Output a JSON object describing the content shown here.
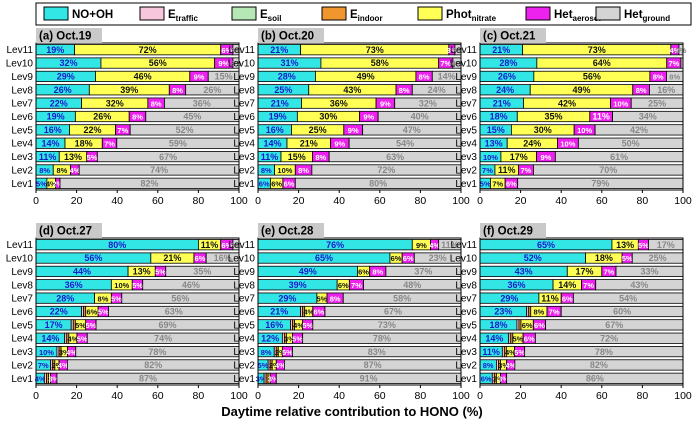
{
  "legend": [
    {
      "key": "NO+OH",
      "base": "NO+OH",
      "sub": "",
      "color": "#33e6e6"
    },
    {
      "key": "E_traffic",
      "base": "E",
      "sub": "traffic",
      "color": "#f7c6dd"
    },
    {
      "key": "E_soil",
      "base": "E",
      "sub": "soil",
      "color": "#b6e8b6"
    },
    {
      "key": "E_indoor",
      "base": "E",
      "sub": "indoor",
      "color": "#f0962e"
    },
    {
      "key": "Phot_nitrate",
      "base": "Phot",
      "sub": "nitrate",
      "color": "#ffff55"
    },
    {
      "key": "Het_aerosol",
      "base": "Het",
      "sub": "aerosol",
      "color": "#ee22ee"
    },
    {
      "key": "Het_ground",
      "base": "Het",
      "sub": "ground",
      "color": "#d4d4d4"
    }
  ],
  "xlabel": "Daytime relative contribution to HONO (%)",
  "chart_data": [
    {
      "type": "bar",
      "title": "(a) Oct.19",
      "xlim": [
        0,
        100
      ],
      "xticks": [
        0,
        20,
        40,
        60,
        80,
        100
      ],
      "categories": [
        "Lev11",
        "Lev10",
        "Lev9",
        "Lev8",
        "Lev7",
        "Lev6",
        "Lev5",
        "Lev4",
        "Lev3",
        "Lev2",
        "Lev1"
      ],
      "series": [
        {
          "name": "NO+OH",
          "values": [
            19,
            32,
            29,
            26,
            22,
            19,
            16,
            14,
            11,
            8,
            5
          ]
        },
        {
          "name": "E_traffic",
          "values": [
            0,
            0,
            0,
            0,
            0,
            0,
            0,
            0,
            0,
            0,
            0
          ]
        },
        {
          "name": "E_soil",
          "values": [
            0,
            0,
            0,
            0,
            0,
            0,
            0,
            0,
            0,
            0,
            0
          ]
        },
        {
          "name": "E_indoor",
          "values": [
            0,
            0,
            0,
            0,
            0,
            0,
            0,
            0,
            0,
            0,
            0
          ]
        },
        {
          "name": "Phot_nitrate",
          "values": [
            72,
            56,
            46,
            39,
            32,
            26,
            22,
            18,
            13,
            8,
            4
          ]
        },
        {
          "name": "Het_aerosol",
          "values": [
            6,
            9,
            9,
            8,
            8,
            8,
            7,
            7,
            5,
            4,
            2
          ]
        },
        {
          "name": "Het_ground",
          "values": [
            3,
            3,
            15,
            26,
            36,
            45,
            52,
            59,
            67,
            74,
            82
          ]
        }
      ]
    },
    {
      "type": "bar",
      "title": "(b) Oct.20",
      "xlim": [
        0,
        100
      ],
      "xticks": [
        0,
        20,
        40,
        60,
        80,
        100
      ],
      "categories": [
        "Lev11",
        "Lev10",
        "Lev9",
        "Lev8",
        "Lev7",
        "Lev6",
        "Lev5",
        "Lev4",
        "Lev3",
        "Lev2",
        "Lev1"
      ],
      "series": [
        {
          "name": "NO+OH",
          "values": [
            21,
            31,
            28,
            25,
            21,
            19,
            16,
            14,
            11,
            8,
            6
          ]
        },
        {
          "name": "E_traffic",
          "values": [
            0,
            0,
            0,
            0,
            0,
            0,
            0,
            0,
            0,
            0,
            0
          ]
        },
        {
          "name": "E_soil",
          "values": [
            0,
            0,
            0,
            0,
            0,
            0,
            0,
            0,
            0,
            0,
            0
          ]
        },
        {
          "name": "E_indoor",
          "values": [
            0,
            0,
            0,
            0,
            0,
            0,
            0,
            0,
            0,
            0,
            0
          ]
        },
        {
          "name": "Phot_nitrate",
          "values": [
            73,
            58,
            49,
            43,
            36,
            30,
            25,
            21,
            15,
            10,
            6
          ]
        },
        {
          "name": "Het_aerosol",
          "values": [
            3,
            7,
            8,
            8,
            9,
            9,
            9,
            9,
            8,
            8,
            6
          ]
        },
        {
          "name": "Het_ground",
          "values": [
            3,
            4,
            14,
            24,
            32,
            40,
            47,
            54,
            63,
            72,
            80
          ]
        }
      ]
    },
    {
      "type": "bar",
      "title": "(c) Oct.21",
      "xlim": [
        0,
        100
      ],
      "xticks": [
        0,
        20,
        40,
        60,
        80,
        100
      ],
      "categories": [
        "Lev11",
        "Lev10",
        "Lev9",
        "Lev8",
        "Lev7",
        "Lev6",
        "Lev5",
        "Lev4",
        "Lev3",
        "Lev2",
        "Lev1"
      ],
      "series": [
        {
          "name": "NO+OH",
          "values": [
            21,
            28,
            26,
            24,
            21,
            18,
            15,
            13,
            10,
            7,
            5
          ]
        },
        {
          "name": "E_traffic",
          "values": [
            0,
            0,
            0,
            0,
            0,
            0,
            0,
            0,
            0,
            0,
            0
          ]
        },
        {
          "name": "E_soil",
          "values": [
            0,
            0,
            0,
            0,
            0,
            0,
            0,
            0,
            0,
            0,
            0
          ]
        },
        {
          "name": "E_indoor",
          "values": [
            0,
            0,
            0,
            0,
            0,
            0,
            0,
            0,
            0,
            0,
            0
          ]
        },
        {
          "name": "Phot_nitrate",
          "values": [
            73,
            64,
            56,
            49,
            42,
            35,
            30,
            24,
            17,
            11,
            7
          ]
        },
        {
          "name": "Het_aerosol",
          "values": [
            4,
            7,
            8,
            8,
            10,
            11,
            10,
            10,
            9,
            7,
            6
          ]
        },
        {
          "name": "Het_ground",
          "values": [
            2,
            1,
            8,
            16,
            25,
            34,
            42,
            50,
            61,
            70,
            79
          ]
        }
      ]
    },
    {
      "type": "bar",
      "title": "(d) Oct.27",
      "xlim": [
        0,
        100
      ],
      "xticks": [
        0,
        20,
        40,
        60,
        80,
        100
      ],
      "categories": [
        "Lev11",
        "Lev10",
        "Lev9",
        "Lev8",
        "Lev7",
        "Lev6",
        "Lev5",
        "Lev4",
        "Lev3",
        "Lev2",
        "Lev1"
      ],
      "series": [
        {
          "name": "NO+OH",
          "values": [
            80,
            56,
            44,
            36,
            28,
            22,
            17,
            14,
            10,
            7,
            4
          ]
        },
        {
          "name": "E_traffic",
          "values": [
            0,
            0,
            0,
            0,
            0,
            1,
            1,
            1,
            1,
            1,
            1
          ]
        },
        {
          "name": "E_soil",
          "values": [
            0,
            0,
            0,
            0,
            0,
            0,
            0,
            0,
            0,
            0,
            0
          ]
        },
        {
          "name": "E_indoor",
          "values": [
            0,
            0,
            0,
            0,
            0,
            1,
            1,
            1,
            1,
            1,
            1
          ]
        },
        {
          "name": "Phot_nitrate",
          "values": [
            11,
            21,
            13,
            10,
            8,
            6,
            5,
            4,
            3,
            2,
            1
          ]
        },
        {
          "name": "Het_aerosol",
          "values": [
            6,
            6,
            5,
            5,
            5,
            5,
            5,
            5,
            4,
            4,
            3
          ]
        },
        {
          "name": "Het_ground",
          "values": [
            3,
            16,
            35,
            46,
            56,
            63,
            69,
            74,
            78,
            82,
            87
          ]
        }
      ]
    },
    {
      "type": "bar",
      "title": "(e) Oct.28",
      "xlim": [
        0,
        100
      ],
      "xticks": [
        0,
        20,
        40,
        60,
        80,
        100
      ],
      "categories": [
        "Lev11",
        "Lev10",
        "Lev9",
        "Lev8",
        "Lev7",
        "Lev6",
        "Lev5",
        "Lev4",
        "Lev3",
        "Lev2",
        "Lev1"
      ],
      "series": [
        {
          "name": "NO+OH",
          "values": [
            76,
            65,
            49,
            39,
            29,
            21,
            16,
            12,
            8,
            5,
            3
          ]
        },
        {
          "name": "E_traffic",
          "values": [
            0,
            0,
            0,
            0,
            0,
            1,
            1,
            1,
            1,
            1,
            1
          ]
        },
        {
          "name": "E_soil",
          "values": [
            0,
            0,
            0,
            0,
            0,
            0,
            0,
            0,
            0,
            0,
            0
          ]
        },
        {
          "name": "E_indoor",
          "values": [
            0,
            0,
            0,
            0,
            0,
            1,
            1,
            1,
            1,
            1,
            1
          ]
        },
        {
          "name": "Phot_nitrate",
          "values": [
            9,
            6,
            6,
            6,
            5,
            4,
            4,
            3,
            2,
            2,
            1
          ]
        },
        {
          "name": "Het_aerosol",
          "values": [
            4,
            6,
            8,
            7,
            8,
            6,
            5,
            5,
            5,
            4,
            3
          ]
        },
        {
          "name": "Het_ground",
          "values": [
            11,
            23,
            37,
            48,
            58,
            67,
            73,
            78,
            83,
            87,
            91
          ]
        }
      ]
    },
    {
      "type": "bar",
      "title": "(f) Oct.29",
      "xlim": [
        0,
        100
      ],
      "xticks": [
        0,
        20,
        40,
        60,
        80,
        100
      ],
      "categories": [
        "Lev11",
        "Lev10",
        "Lev9",
        "Lev8",
        "Lev7",
        "Lev6",
        "Lev5",
        "Lev4",
        "Lev3",
        "Lev2",
        "Lev1"
      ],
      "series": [
        {
          "name": "NO+OH",
          "values": [
            65,
            52,
            43,
            36,
            29,
            23,
            18,
            14,
            11,
            8,
            6
          ]
        },
        {
          "name": "E_traffic",
          "values": [
            0,
            0,
            0,
            0,
            0,
            1,
            1,
            1,
            1,
            1,
            1
          ]
        },
        {
          "name": "E_soil",
          "values": [
            0,
            0,
            0,
            0,
            0,
            0,
            0,
            0,
            0,
            0,
            0
          ]
        },
        {
          "name": "E_indoor",
          "values": [
            0,
            0,
            0,
            0,
            0,
            1,
            1,
            1,
            1,
            1,
            1
          ]
        },
        {
          "name": "Phot_nitrate",
          "values": [
            13,
            18,
            17,
            14,
            11,
            8,
            6,
            5,
            4,
            3,
            2
          ]
        },
        {
          "name": "Het_aerosol",
          "values": [
            5,
            5,
            7,
            7,
            6,
            7,
            6,
            6,
            5,
            4,
            3
          ]
        },
        {
          "name": "Het_ground",
          "values": [
            17,
            25,
            33,
            43,
            54,
            60,
            67,
            72,
            78,
            82,
            86
          ]
        }
      ]
    }
  ]
}
